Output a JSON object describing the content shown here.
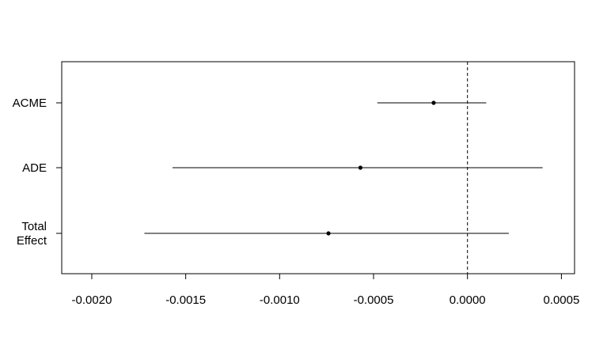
{
  "chart_data": {
    "type": "scatter",
    "subtype": "forest-plot",
    "title": "",
    "xlabel": "",
    "ylabel": "",
    "xlim": [
      -0.00216,
      0.00057
    ],
    "xticks": [
      {
        "value": -0.002,
        "label": "-0.0020"
      },
      {
        "value": -0.0015,
        "label": "-0.0015"
      },
      {
        "value": -0.001,
        "label": "-0.0010"
      },
      {
        "value": -0.0005,
        "label": "-0.0005"
      },
      {
        "value": 0.0,
        "label": "0.0000"
      },
      {
        "value": 0.0005,
        "label": "0.0005"
      }
    ],
    "reference_line": {
      "value": 0.0,
      "style": "dashed"
    },
    "grid": false,
    "categories": [
      {
        "label_lines": [
          "ACME"
        ],
        "estimate": -0.00018,
        "ci": [
          -0.00048,
          0.0001
        ]
      },
      {
        "label_lines": [
          "ADE"
        ],
        "estimate": -0.00057,
        "ci": [
          -0.00157,
          0.0004
        ]
      },
      {
        "label_lines": [
          "Total",
          "Effect"
        ],
        "estimate": -0.00074,
        "ci": [
          -0.00172,
          0.00022
        ]
      }
    ],
    "colors": {
      "line": "#000000",
      "point": "#000000"
    }
  }
}
